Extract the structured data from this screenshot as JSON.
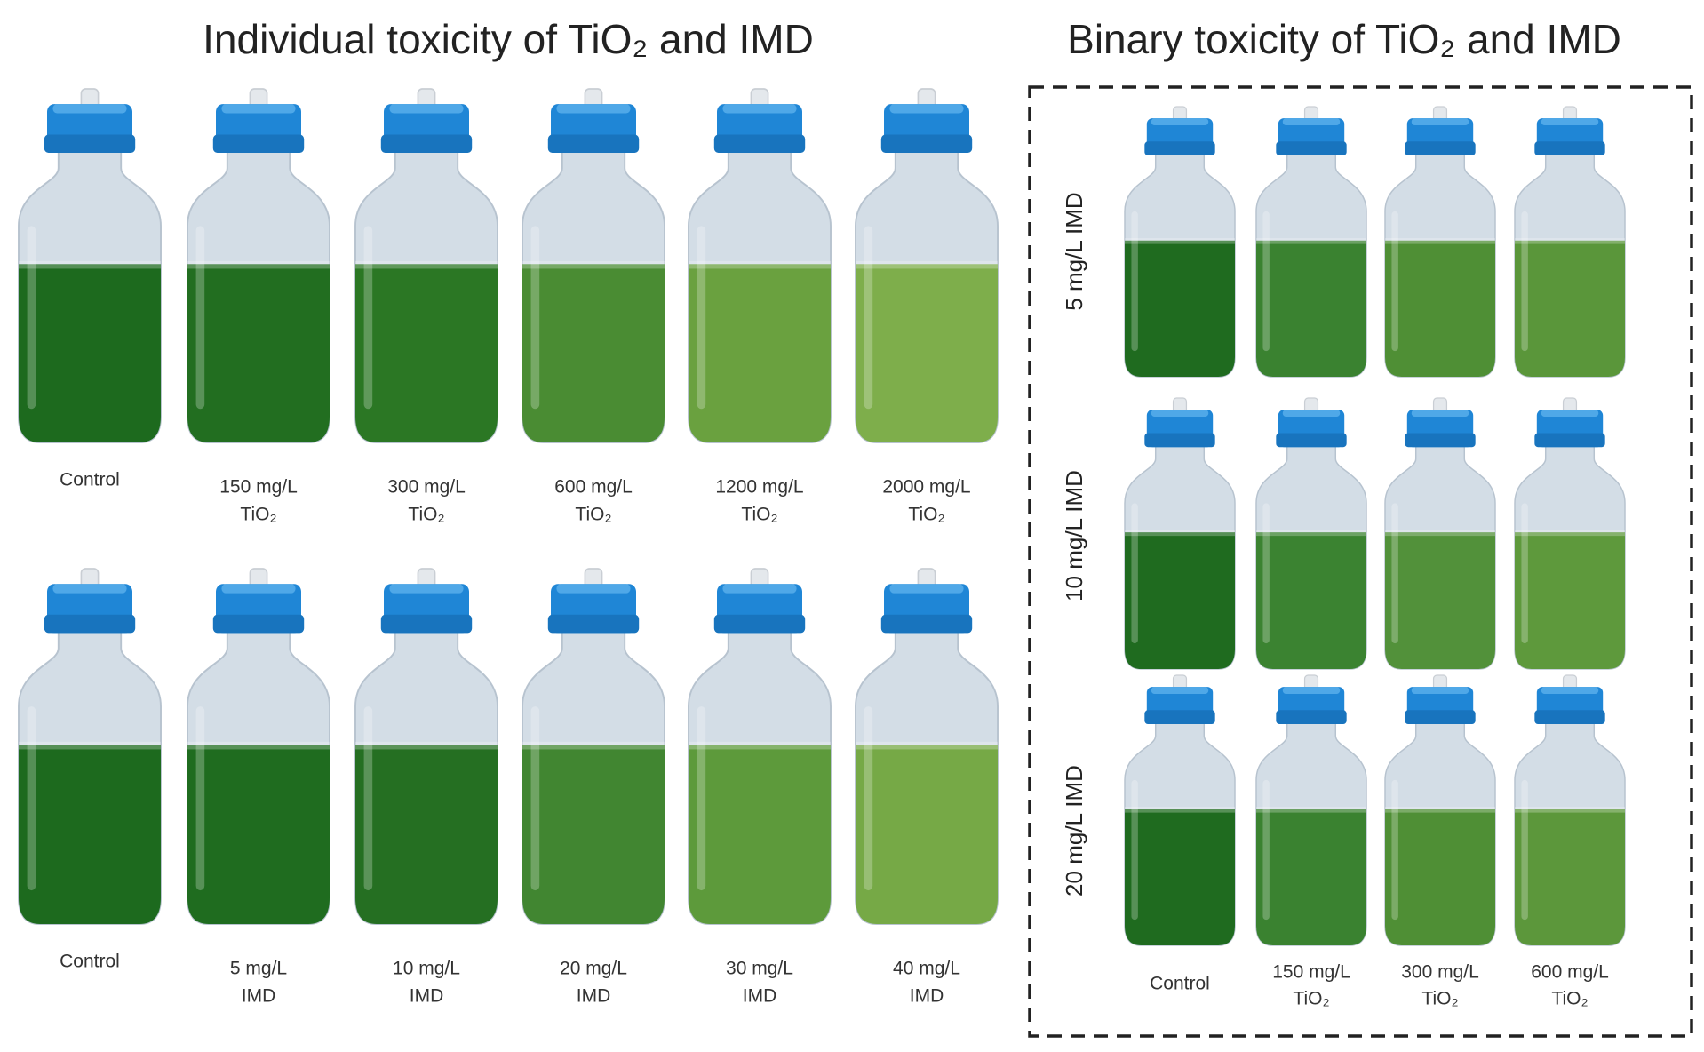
{
  "individual": {
    "title": "Individual toxicity of TiO₂ and IMD",
    "rows": [
      [
        [
          "Control"
        ],
        [
          "150 mg/L",
          "TiO₂"
        ],
        [
          "300 mg/L",
          "TiO₂"
        ],
        [
          "600 mg/L",
          "TiO₂"
        ],
        [
          "1200 mg/L",
          "TiO₂"
        ],
        [
          "2000 mg/L",
          "TiO₂"
        ]
      ],
      [
        [
          "Control"
        ],
        [
          "5 mg/L",
          "IMD"
        ],
        [
          "10 mg/L",
          "IMD"
        ],
        [
          "20 mg/L",
          "IMD"
        ],
        [
          "30 mg/L",
          "IMD"
        ],
        [
          "40 mg/L",
          "IMD"
        ]
      ]
    ]
  },
  "binary": {
    "title": "Binary toxicity of TiO₂ and IMD",
    "row_labels": [
      "5 mg/L IMD",
      "10 mg/L IMD",
      "20 mg/L IMD"
    ],
    "column_labels": [
      [
        "Control"
      ],
      [
        "150 mg/L",
        "TiO₂"
      ],
      [
        "300 mg/L",
        "TiO₂"
      ],
      [
        "600 mg/L",
        "TiO₂"
      ]
    ]
  }
}
